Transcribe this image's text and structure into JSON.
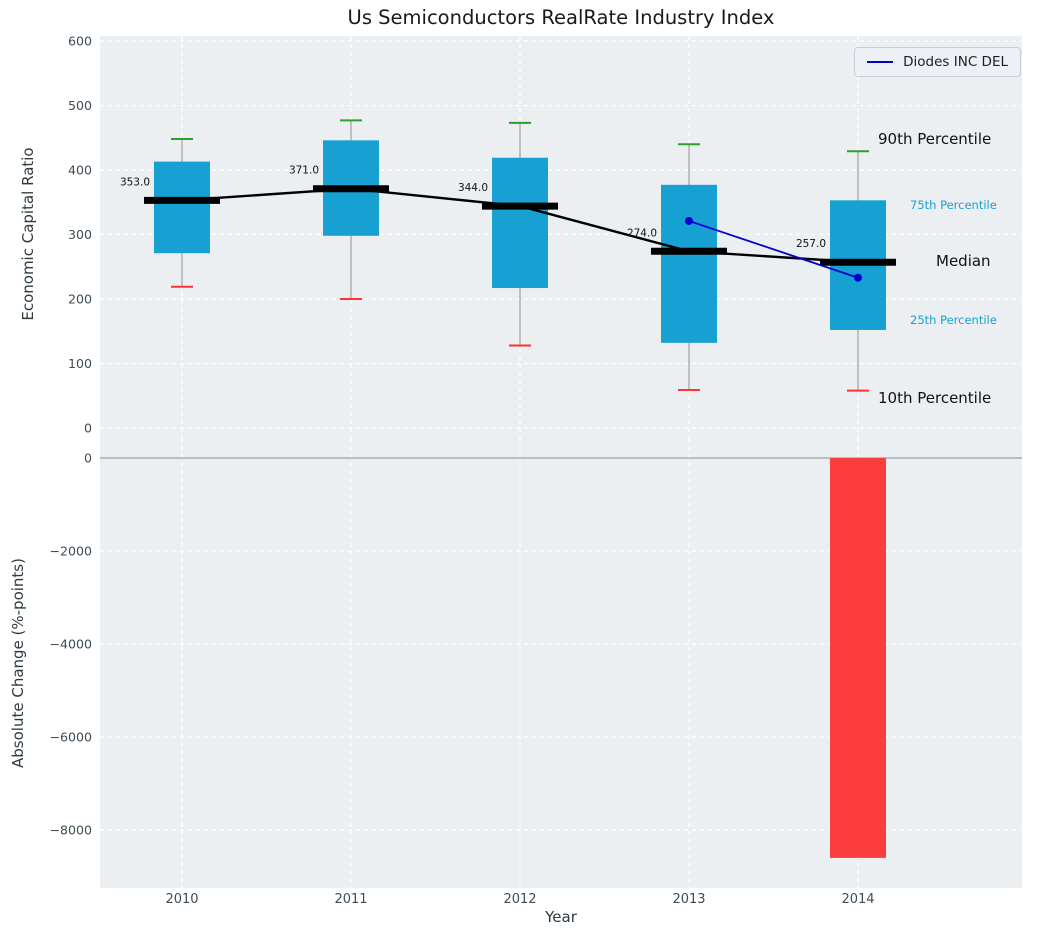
{
  "chart_data": [
    {
      "type": "boxplot",
      "title": "Us Semiconductors RealRate Industry Index",
      "xlabel": "Year",
      "ylabel": "Economic Capital Ratio",
      "ylim": [
        0,
        600
      ],
      "yticks": [
        0,
        100,
        200,
        300,
        400,
        500,
        600
      ],
      "grid": true,
      "categories": [
        "2010",
        "2011",
        "2012",
        "2013",
        "2014"
      ],
      "boxes": [
        {
          "year": "2010",
          "p10": 219,
          "p25": 271,
          "median": 353,
          "p75": 413,
          "p90": 448
        },
        {
          "year": "2011",
          "p10": 200,
          "p25": 298,
          "median": 371,
          "p75": 446,
          "p90": 477
        },
        {
          "year": "2012",
          "p10": 128,
          "p25": 217,
          "median": 344,
          "p75": 419,
          "p90": 473
        },
        {
          "year": "2013",
          "p10": 59,
          "p25": 132,
          "median": 274,
          "p75": 377,
          "p90": 440
        },
        {
          "year": "2014",
          "p10": 58,
          "p25": 152,
          "median": 257,
          "p75": 353,
          "p90": 429
        }
      ],
      "median_labels": [
        "353.0",
        "371.0",
        "344.0",
        "274.0",
        "257.0"
      ],
      "series": [
        {
          "name": "Diodes INC DEL",
          "x": [
            "2013",
            "2014"
          ],
          "values": [
            321,
            233
          ]
        }
      ],
      "percentile_labels": {
        "p90": {
          "label": "90th Percentile"
        },
        "p75": {
          "label": "75th Percentile"
        },
        "median": {
          "label": "Median"
        },
        "p25": {
          "label": "25th Percentile"
        },
        "p10": {
          "label": "10th Percentile"
        }
      },
      "legend": {
        "label": "Diodes INC DEL",
        "position": "upper right"
      }
    },
    {
      "type": "bar",
      "ylabel": "Absolute Change (%-points)",
      "ylim": [
        -9250,
        390
      ],
      "yticks": [
        0,
        -2000,
        -4000,
        -6000,
        -8000
      ],
      "grid": true,
      "categories": [
        "2010",
        "2011",
        "2012",
        "2013",
        "2014"
      ],
      "values": [
        null,
        null,
        null,
        null,
        -8600
      ]
    }
  ],
  "colors": {
    "panel_bg": "#eceff1",
    "grid": "#ffffff",
    "box_fill": "#17a1d2",
    "median": "#000000",
    "p90_cap": "#2ca02c",
    "p10_cap": "#ff3333",
    "whisker": "#909090",
    "series_line": "#0000cd",
    "negative_bar": "#fb3d3d",
    "tick_text": "#3f4d56",
    "zero_line": "#a9aeb3",
    "percentile_text_blue": "#1a9fd0"
  }
}
